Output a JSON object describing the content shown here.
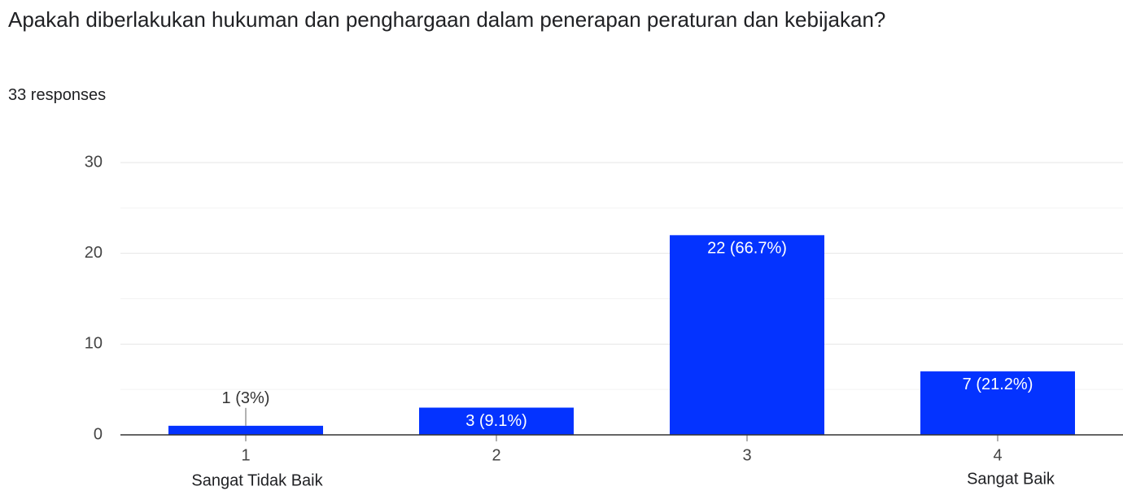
{
  "chart_data": {
    "type": "bar",
    "title": "Apakah diberlakukan hukuman dan penghargaan dalam penerapan peraturan dan kebijakan?",
    "subtitle": "33 responses",
    "categories": [
      "1",
      "2",
      "3",
      "4"
    ],
    "values": [
      1,
      3,
      22,
      7
    ],
    "value_labels": [
      "1 (3%)",
      "3 (9.1%)",
      "22 (66.7%)",
      "7 (21.2%)"
    ],
    "low_label": "Sangat Tidak Baik",
    "high_label": "Sangat Baik",
    "color": "#0433ff",
    "ylim": [
      0,
      30
    ],
    "yticks": [
      0,
      10,
      20,
      30
    ],
    "minor_yticks": [
      5,
      15,
      25
    ],
    "grid": true
  }
}
